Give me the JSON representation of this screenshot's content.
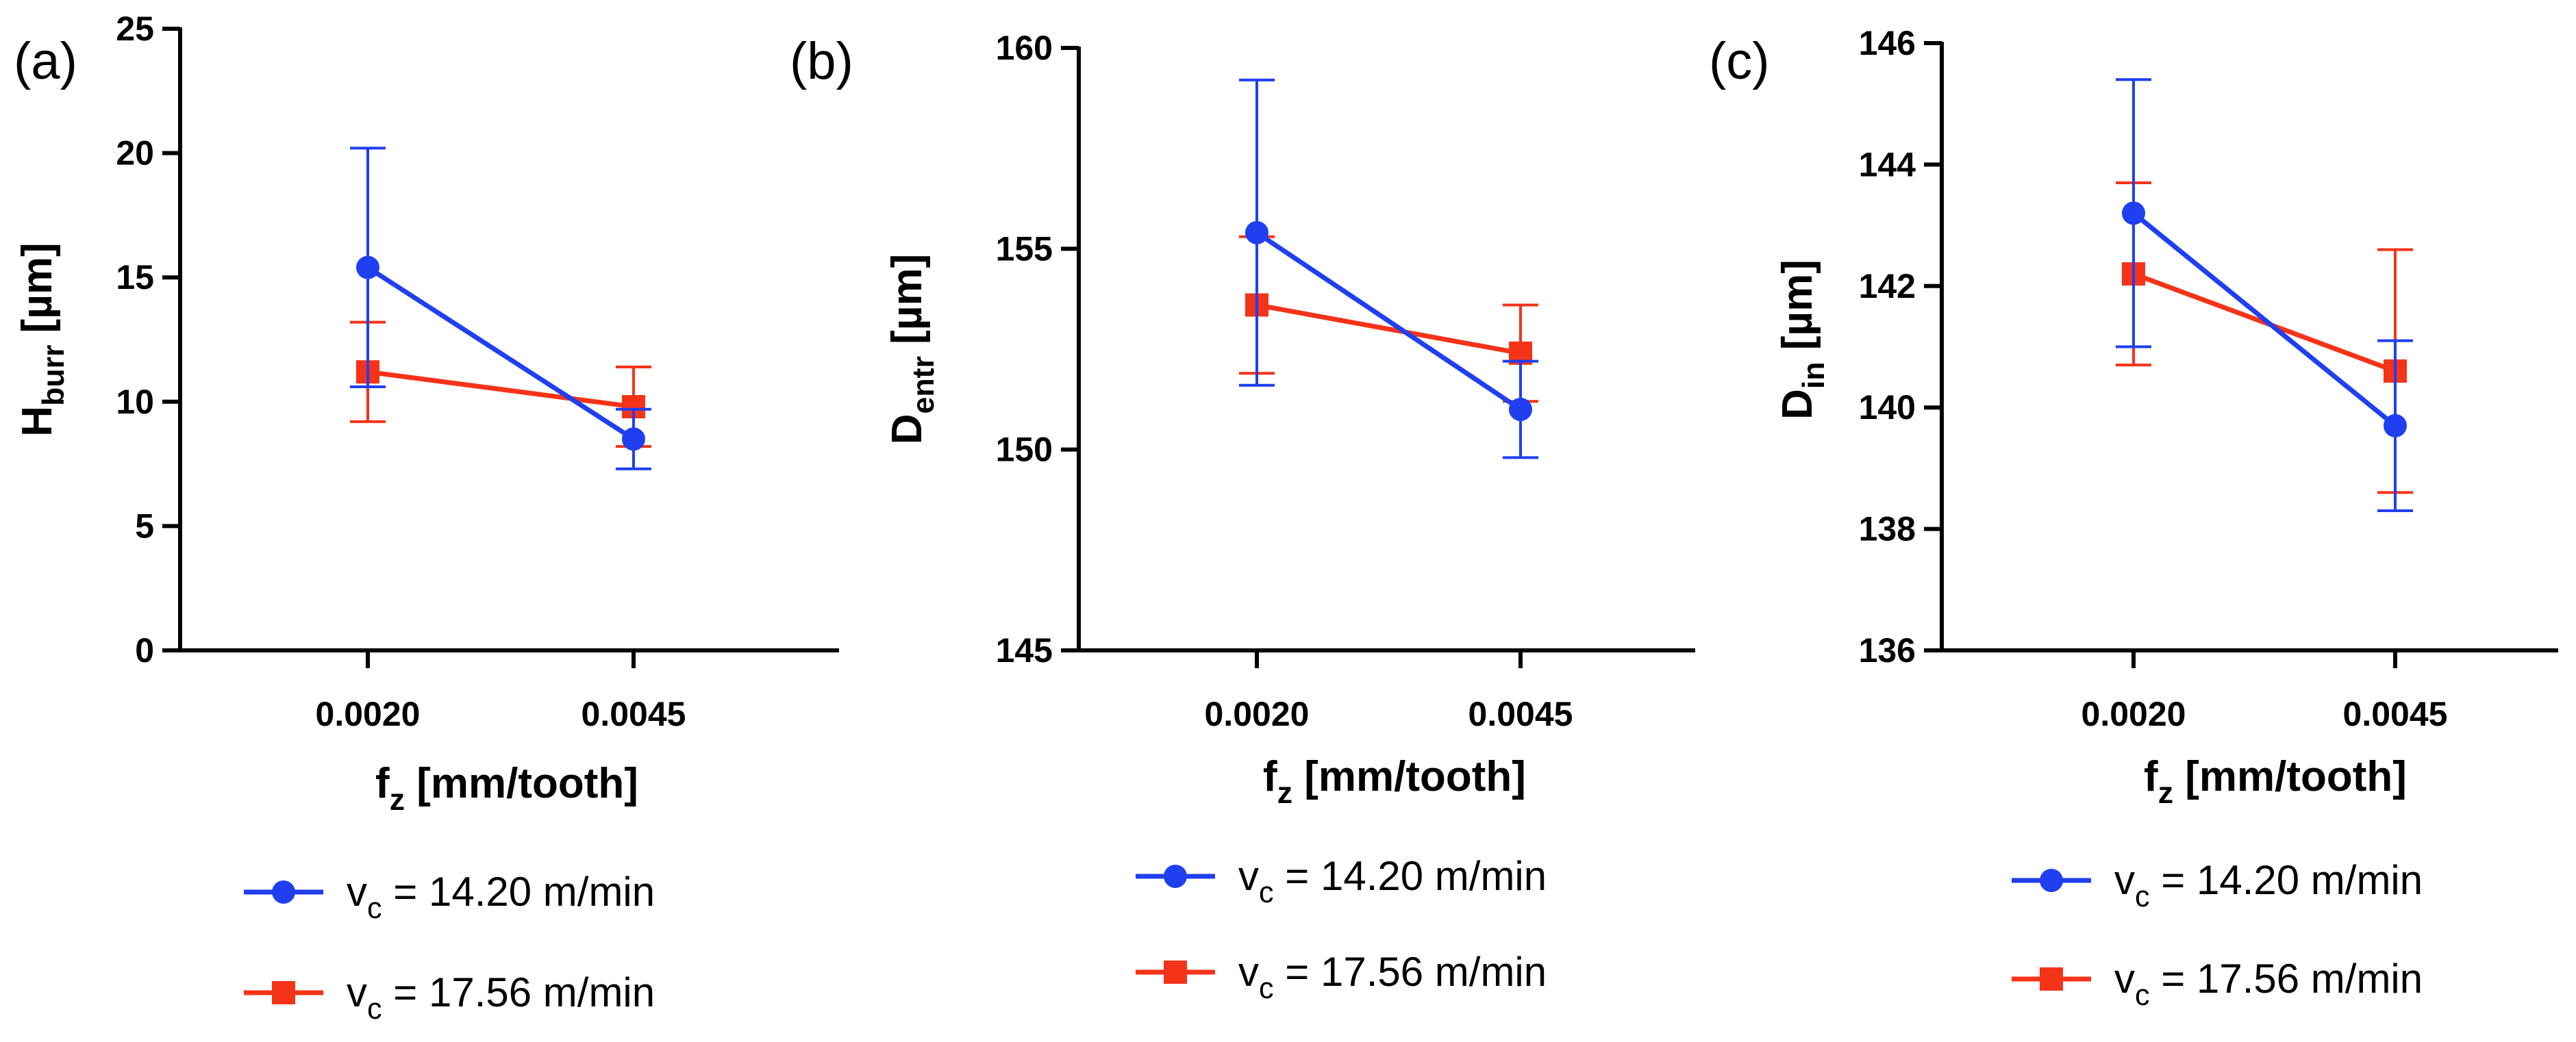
{
  "figure": {
    "type": "line-errorbar-panels",
    "legend_placement": "below"
  },
  "chart_data": [
    {
      "type": "line",
      "panel_label": "(a)",
      "title": "",
      "xlabel": {
        "main": "f",
        "sub": "z",
        "rest": " [mm/tooth]"
      },
      "ylabel": {
        "main": "H",
        "sub": "burr",
        "rest": " [µm]"
      },
      "categories": [
        "0.0020",
        "0.0045"
      ],
      "ylim": [
        0,
        25
      ],
      "yticks": [
        0,
        5,
        10,
        15,
        20,
        25
      ],
      "grid": false,
      "series": [
        {
          "name": "v_c = 14.20 m/min",
          "legend": {
            "main": "v",
            "sub": "c",
            "rest": " = 14.20 m/min"
          },
          "color": "#1f3ff0",
          "marker": "circle",
          "values": [
            15.4,
            8.5
          ],
          "err": [
            4.8,
            1.2
          ]
        },
        {
          "name": "v_c = 17.56 m/min",
          "legend": {
            "main": "v",
            "sub": "c",
            "rest": " = 17.56 m/min"
          },
          "color": "#f53318",
          "marker": "square",
          "values": [
            11.2,
            9.8
          ],
          "err": [
            2.0,
            1.6
          ]
        }
      ]
    },
    {
      "type": "line",
      "panel_label": "(b)",
      "title": "",
      "xlabel": {
        "main": "f",
        "sub": "z",
        "rest": " [mm/tooth]"
      },
      "ylabel": {
        "main": "D",
        "sub": "entr",
        "rest": " [µm]"
      },
      "categories": [
        "0.0020",
        "0.0045"
      ],
      "ylim": [
        145,
        160
      ],
      "yticks": [
        145,
        150,
        155,
        160
      ],
      "grid": false,
      "series": [
        {
          "name": "v_c = 14.20 m/min",
          "legend": {
            "main": "v",
            "sub": "c",
            "rest": " = 14.20 m/min"
          },
          "color": "#1f3ff0",
          "marker": "circle",
          "values": [
            155.4,
            151.0
          ],
          "err": [
            3.8,
            1.2
          ]
        },
        {
          "name": "v_c = 17.56 m/min",
          "legend": {
            "main": "v",
            "sub": "c",
            "rest": " = 17.56 m/min"
          },
          "color": "#f53318",
          "marker": "square",
          "values": [
            153.6,
            152.4
          ],
          "err": [
            1.7,
            1.2
          ]
        }
      ]
    },
    {
      "type": "line",
      "panel_label": "(c)",
      "title": "",
      "xlabel": {
        "main": "f",
        "sub": "z",
        "rest": " [mm/tooth]"
      },
      "ylabel": {
        "main": "D",
        "sub": "in",
        "rest": " [µm]"
      },
      "categories": [
        "0.0020",
        "0.0045"
      ],
      "ylim": [
        136,
        146
      ],
      "yticks": [
        136,
        138,
        140,
        142,
        144,
        146
      ],
      "grid": false,
      "series": [
        {
          "name": "v_c = 14.20 m/min",
          "legend": {
            "main": "v",
            "sub": "c",
            "rest": " = 14.20 m/min"
          },
          "color": "#1f3ff0",
          "marker": "circle",
          "values": [
            143.2,
            139.7
          ],
          "err": [
            2.2,
            1.4
          ]
        },
        {
          "name": "v_c = 17.56 m/min",
          "legend": {
            "main": "v",
            "sub": "c",
            "rest": " = 17.56 m/min"
          },
          "color": "#f53318",
          "marker": "square",
          "values": [
            142.2,
            140.6
          ],
          "err": [
            1.5,
            2.0
          ]
        }
      ]
    }
  ]
}
